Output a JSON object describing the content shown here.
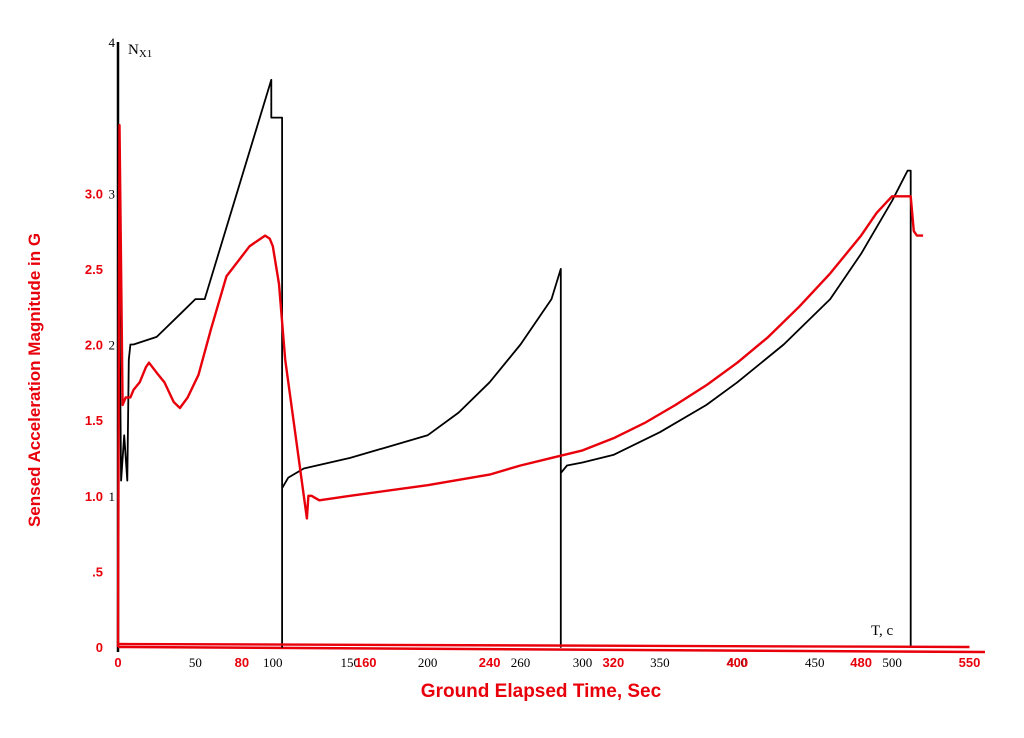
{
  "chart_data": {
    "type": "line",
    "xlabel": "Ground Elapsed Time, Sec",
    "ylabel": "Sensed Acceleration Magnitude in G",
    "overlay_x_axis_name": "T, c",
    "overlay_y_axis_name": "N",
    "overlay_y_axis_subscript": "X1",
    "xlim": [
      0,
      560
    ],
    "ylim": [
      0,
      4
    ],
    "grid": false,
    "x_ticks": [
      "0",
      "50",
      "80",
      "100",
      "150",
      "160",
      "200",
      "240",
      "260",
      "300",
      "320",
      "350",
      "400",
      "400",
      "450",
      "480",
      "500",
      "550"
    ],
    "x_tick_values": [
      0,
      50,
      80,
      100,
      150,
      160,
      200,
      240,
      260,
      300,
      320,
      350,
      400,
      400,
      450,
      480,
      500,
      550
    ],
    "x_tick_colors": [
      "red",
      "black",
      "red",
      "black",
      "black",
      "red",
      "black",
      "red",
      "black",
      "black",
      "red",
      "black",
      "black",
      "red",
      "black",
      "red",
      "black",
      "red"
    ],
    "y_ticks_black": [
      "4",
      "3",
      "2",
      "1"
    ],
    "y_ticks_black_values": [
      4,
      3,
      2,
      1
    ],
    "y_ticks_red": [
      "3.0",
      "2.5",
      "2.0",
      "1.5",
      "1.0",
      ".5",
      "0"
    ],
    "y_ticks_red_values": [
      3.0,
      2.5,
      2.0,
      1.5,
      1.0,
      0.5,
      0
    ],
    "series": [
      {
        "color": "#000000",
        "x": [
          0,
          0,
          2,
          4,
          6,
          7,
          8,
          10,
          25,
          40,
          50,
          56,
          99,
          99,
          106,
          106,
          106,
          110,
          120,
          150,
          200,
          220,
          240,
          260,
          280,
          286,
          286,
          286,
          290,
          300,
          320,
          350,
          380,
          400,
          430,
          460,
          480,
          500,
          510,
          512,
          512
        ],
        "y": [
          1.0,
          3.3,
          1.1,
          1.4,
          1.1,
          1.9,
          2.0,
          2.0,
          2.05,
          2.2,
          2.3,
          2.3,
          3.75,
          3.5,
          3.5,
          0.0,
          1.05,
          1.12,
          1.18,
          1.25,
          1.4,
          1.55,
          1.75,
          2.0,
          2.3,
          2.5,
          0.0,
          1.15,
          1.2,
          1.22,
          1.27,
          1.42,
          1.6,
          1.75,
          2.0,
          2.3,
          2.6,
          2.95,
          3.15,
          3.15,
          0.0
        ]
      },
      {
        "color": "#e8000b",
        "x": [
          0,
          1,
          3,
          5,
          8,
          10,
          14,
          18,
          20,
          26,
          30,
          36,
          40,
          45,
          52,
          60,
          70,
          85,
          95,
          98,
          100,
          104,
          108,
          116,
          120,
          122,
          123,
          125,
          130,
          150,
          200,
          240,
          260,
          280,
          300,
          320,
          340,
          360,
          380,
          400,
          420,
          440,
          460,
          480,
          490,
          500,
          505,
          510,
          512,
          514,
          516,
          520
        ],
        "y": [
          0.0,
          3.45,
          1.6,
          1.65,
          1.65,
          1.7,
          1.75,
          1.85,
          1.88,
          1.8,
          1.75,
          1.62,
          1.58,
          1.65,
          1.8,
          2.1,
          2.45,
          2.65,
          2.72,
          2.7,
          2.65,
          2.4,
          1.9,
          1.3,
          1.0,
          0.85,
          1.0,
          1.0,
          0.97,
          1.0,
          1.07,
          1.14,
          1.2,
          1.25,
          1.3,
          1.38,
          1.48,
          1.6,
          1.73,
          1.88,
          2.05,
          2.25,
          2.47,
          2.72,
          2.87,
          2.98,
          2.98,
          2.98,
          2.98,
          2.75,
          2.72,
          2.72
        ]
      },
      {
        "color": "#e8000b",
        "x": [
          0,
          550
        ],
        "y": [
          0.02,
          0.0
        ]
      }
    ]
  }
}
